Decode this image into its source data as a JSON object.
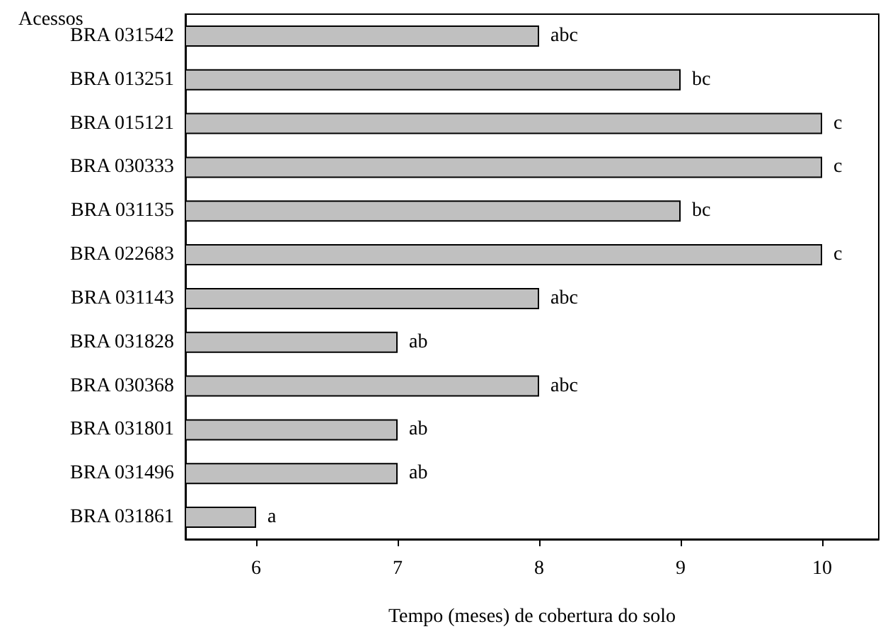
{
  "chart_data": {
    "type": "bar",
    "orientation": "horizontal",
    "ylabel": "Acessos",
    "xlabel": "Tempo (meses) de cobertura do solo",
    "categories": [
      "BRA 031542",
      "BRA 013251",
      "BRA 015121",
      "BRA 030333",
      "BRA 031135",
      "BRA 022683",
      "BRA 031143",
      "BRA 031828",
      "BRA 030368",
      "BRA 031801",
      "BRA 031496",
      "BRA 031861"
    ],
    "values": [
      8,
      9,
      10,
      10,
      9,
      10,
      8,
      7,
      8,
      7,
      7,
      6
    ],
    "value_labels": [
      "abc",
      "bc",
      "c",
      "c",
      "bc",
      "c",
      "abc",
      "ab",
      "abc",
      "ab",
      "ab",
      "a"
    ],
    "color": "#c0c0c0",
    "xlim": [
      5.5,
      10.4
    ],
    "xticks": [
      6,
      7,
      8,
      9,
      10
    ],
    "grid": false
  }
}
